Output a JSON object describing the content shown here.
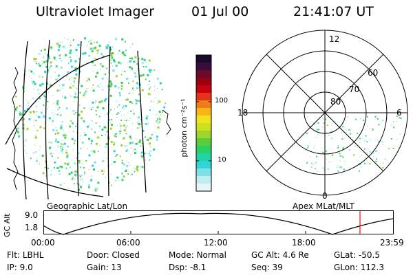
{
  "header": {
    "title": "Ultraviolet Imager",
    "date": "01 Jul 00",
    "time": "21:41:07 UT"
  },
  "geo_panel": {
    "label": "Geographic Lat/Lon"
  },
  "colorbar": {
    "unit_label": "photon cm⁻²s⁻¹",
    "ticks": [
      "100",
      "10"
    ],
    "colors": [
      "#1a0a2e",
      "#3a0c3c",
      "#6a0a2a",
      "#9a0010",
      "#c80010",
      "#e4331a",
      "#f07d1a",
      "#f7b516",
      "#f1e21e",
      "#cde01c",
      "#9ed52a",
      "#5bcc3a",
      "#2ccf62",
      "#20d4a6",
      "#30d6d6",
      "#7fe0e8",
      "#c0ecf2",
      "#e8f5f8"
    ]
  },
  "polar_panel": {
    "label": "Apex MLat/MLT",
    "mlt_labels": {
      "top": "12",
      "bottom": "0",
      "left": "18",
      "right": "6"
    },
    "lat_labels": [
      "60",
      "70",
      "80"
    ]
  },
  "altitude_strip": {
    "axis_label": "GC Alt",
    "y_ticks": [
      "9.0",
      "1.8"
    ],
    "x_ticks": [
      "00:00",
      "06:00",
      "12:00",
      "18:00",
      "23:59"
    ],
    "current_marker_time_hours": 21.69,
    "marker_color": "#ff0000"
  },
  "info": [
    {
      "label": "Flt:",
      "value": "LBHL"
    },
    {
      "label": "Door:",
      "value": "Closed"
    },
    {
      "label": "Mode:",
      "value": "Normal"
    },
    {
      "label": "GC Alt:",
      "value": "4.6 Re"
    },
    {
      "label": "GLat:",
      "value": "-50.5"
    },
    {
      "label": "IP:",
      "value": "9.0"
    },
    {
      "label": "Gain:",
      "value": "13"
    },
    {
      "label": "Dsp:",
      "value": "-8.1"
    },
    {
      "label": "Seq:",
      "value": "39"
    },
    {
      "label": "GLon:",
      "value": "112.3"
    }
  ]
}
